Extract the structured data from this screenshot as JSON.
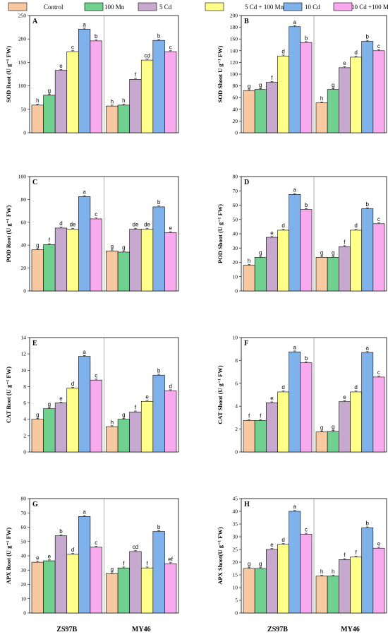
{
  "colors": {
    "series": [
      "#f8c8a0",
      "#6fd08f",
      "#c7a9cf",
      "#ffff8a",
      "#7fb2ea",
      "#f9a9ee"
    ],
    "stroke": "#000000",
    "divider": "#777777"
  },
  "legend": [
    "Control",
    "100 Mn",
    "5 Cd",
    "5 Cd + 100 Mn",
    "10 Cd",
    "10 Cd +100 Mn"
  ],
  "chart_data": [
    {
      "type": "bar",
      "panel": "A",
      "ylabel": "SOD Root (U g⁻¹ FW)",
      "categories": [
        "ZS97B",
        "MY46"
      ],
      "ylim": [
        0,
        250
      ],
      "yticks": [
        0,
        50,
        100,
        150,
        200,
        250
      ],
      "series": [
        {
          "name": "Control",
          "values": [
            59,
            57
          ],
          "letters": [
            "h",
            "h"
          ]
        },
        {
          "name": "100 Mn",
          "values": [
            80,
            59
          ],
          "letters": [
            "g",
            "h"
          ]
        },
        {
          "name": "5 Cd",
          "values": [
            133,
            114
          ],
          "letters": [
            "e",
            "f"
          ]
        },
        {
          "name": "5 Cd + 100 Mn",
          "values": [
            173,
            155
          ],
          "letters": [
            "c",
            "cd"
          ]
        },
        {
          "name": "10 Cd",
          "values": [
            221,
            197
          ],
          "letters": [
            "a",
            "b"
          ]
        },
        {
          "name": "10 Cd +100 Mn",
          "values": [
            196,
            173
          ],
          "letters": [
            "b",
            "c"
          ]
        }
      ]
    },
    {
      "type": "bar",
      "panel": "B",
      "ylabel": "SOD Shoot U g⁻¹ FW)",
      "categories": [
        "ZS97B",
        "MY46"
      ],
      "ylim": [
        0,
        200
      ],
      "yticks": [
        0,
        20,
        40,
        60,
        80,
        100,
        120,
        140,
        160,
        180,
        200
      ],
      "series": [
        {
          "name": "Control",
          "values": [
            72,
            51
          ],
          "letters": [
            "g",
            "h"
          ]
        },
        {
          "name": "100 Mn",
          "values": [
            74,
            74
          ],
          "letters": [
            "g",
            "g"
          ]
        },
        {
          "name": "5 Cd",
          "values": [
            86,
            111
          ],
          "letters": [
            "f",
            "e"
          ]
        },
        {
          "name": "5 Cd + 100 Mn",
          "values": [
            131,
            129
          ],
          "letters": [
            "d",
            "d"
          ]
        },
        {
          "name": "10 Cd",
          "values": [
            181,
            156
          ],
          "letters": [
            "a",
            "b"
          ]
        },
        {
          "name": "10 Cd +100 Mn",
          "values": [
            154,
            140
          ],
          "letters": [
            "b",
            "c"
          ]
        }
      ]
    },
    {
      "type": "bar",
      "panel": "C",
      "ylabel": "POD Root (U g⁻¹ FW)",
      "categories": [
        "ZS97B",
        "MY46"
      ],
      "ylim": [
        0,
        100
      ],
      "yticks": [
        0,
        20,
        40,
        60,
        80,
        100
      ],
      "series": [
        {
          "name": "Control",
          "values": [
            36,
            35
          ],
          "letters": [
            "g",
            "g"
          ]
        },
        {
          "name": "100 Mn",
          "values": [
            40.5,
            34
          ],
          "letters": [
            "f",
            "g"
          ]
        },
        {
          "name": "5 Cd",
          "values": [
            55,
            54
          ],
          "letters": [
            "d",
            "de"
          ]
        },
        {
          "name": "5 Cd + 100 Mn",
          "values": [
            54,
            54
          ],
          "letters": [
            "de",
            "de"
          ]
        },
        {
          "name": "10 Cd",
          "values": [
            82.5,
            73.5
          ],
          "letters": [
            "a",
            "b"
          ]
        },
        {
          "name": "10 Cd +100 Mn",
          "values": [
            63,
            51
          ],
          "letters": [
            "c",
            "e"
          ]
        }
      ]
    },
    {
      "type": "bar",
      "panel": "D",
      "ylabel": "POD Shoot (U g⁻¹ FW)",
      "categories": [
        "ZS97B",
        "MY46"
      ],
      "ylim": [
        0,
        80
      ],
      "yticks": [
        0,
        10,
        20,
        30,
        40,
        50,
        60,
        70,
        80
      ],
      "series": [
        {
          "name": "Control",
          "values": [
            18,
            23.5
          ],
          "letters": [
            "h",
            "g"
          ]
        },
        {
          "name": "100 Mn",
          "values": [
            23.5,
            23.5
          ],
          "letters": [
            "g",
            "g"
          ]
        },
        {
          "name": "5 Cd",
          "values": [
            37.5,
            31
          ],
          "letters": [
            "e",
            "f"
          ]
        },
        {
          "name": "5 Cd + 100 Mn",
          "values": [
            42.5,
            42.5
          ],
          "letters": [
            "d",
            "d"
          ]
        },
        {
          "name": "10 Cd",
          "values": [
            67.5,
            57.5
          ],
          "letters": [
            "a",
            "b"
          ]
        },
        {
          "name": "10 Cd +100 Mn",
          "values": [
            57,
            47
          ],
          "letters": [
            "b",
            "c"
          ]
        }
      ]
    },
    {
      "type": "bar",
      "panel": "E",
      "ylabel": "CAT Root (U g⁻¹ FW)",
      "categories": [
        "ZS97B",
        "MY46"
      ],
      "ylim": [
        0,
        14
      ],
      "yticks": [
        0,
        2,
        4,
        6,
        8,
        10,
        12,
        14
      ],
      "series": [
        {
          "name": "Control",
          "values": [
            4.0,
            3.1
          ],
          "letters": [
            "g",
            "h"
          ]
        },
        {
          "name": "100 Mn",
          "values": [
            5.3,
            4.0
          ],
          "letters": [
            "g",
            "g"
          ]
        },
        {
          "name": "5 Cd",
          "values": [
            6.0,
            4.9
          ],
          "letters": [
            "e",
            "f"
          ]
        },
        {
          "name": "5 Cd + 100 Mn",
          "values": [
            7.8,
            6.2
          ],
          "letters": [
            "d",
            "e"
          ]
        },
        {
          "name": "10 Cd",
          "values": [
            11.7,
            9.4
          ],
          "letters": [
            "a",
            "b"
          ]
        },
        {
          "name": "10 Cd +100 Mn",
          "values": [
            8.8,
            7.5
          ],
          "letters": [
            "c",
            "d"
          ]
        }
      ]
    },
    {
      "type": "bar",
      "panel": "F",
      "ylabel": "CAT Shoot (U g⁻¹ FW)",
      "categories": [
        "ZS97B",
        "MY46"
      ],
      "ylim": [
        0,
        10
      ],
      "yticks": [
        0,
        2,
        4,
        6,
        8,
        10
      ],
      "series": [
        {
          "name": "Control",
          "values": [
            2.75,
            1.75
          ],
          "letters": [
            "f",
            "g"
          ]
        },
        {
          "name": "100 Mn",
          "values": [
            2.75,
            1.8
          ],
          "letters": [
            "f",
            "g"
          ]
        },
        {
          "name": "5 Cd",
          "values": [
            4.3,
            4.4
          ],
          "letters": [
            "e",
            "e"
          ]
        },
        {
          "name": "5 Cd + 100 Mn",
          "values": [
            5.25,
            5.25
          ],
          "letters": [
            "d",
            "d"
          ]
        },
        {
          "name": "10 Cd",
          "values": [
            8.75,
            8.7
          ],
          "letters": [
            "a",
            "a"
          ]
        },
        {
          "name": "10 Cd +100 Mn",
          "values": [
            7.8,
            6.55
          ],
          "letters": [
            "b",
            "c"
          ]
        }
      ]
    },
    {
      "type": "bar",
      "panel": "G",
      "ylabel": "APX Root (U g⁻¹ FW)",
      "categories": [
        "ZS97B",
        "MY46"
      ],
      "ylim": [
        0,
        80
      ],
      "yticks": [
        0,
        10,
        20,
        30,
        40,
        50,
        60,
        70,
        80
      ],
      "series": [
        {
          "name": "Control",
          "values": [
            35.5,
            27.5
          ],
          "letters": [
            "e",
            "g"
          ]
        },
        {
          "name": "100 Mn",
          "values": [
            36.5,
            31.5
          ],
          "letters": [
            "e",
            "f"
          ]
        },
        {
          "name": "5 Cd",
          "values": [
            54,
            43
          ],
          "letters": [
            "b",
            "cd"
          ]
        },
        {
          "name": "5 Cd + 100 Mn",
          "values": [
            41,
            31.5
          ],
          "letters": [
            "d",
            "f"
          ]
        },
        {
          "name": "10 Cd",
          "values": [
            67.5,
            57
          ],
          "letters": [
            "a",
            "b"
          ]
        },
        {
          "name": "10 Cd +100 Mn",
          "values": [
            46,
            34.5
          ],
          "letters": [
            "c",
            "ef"
          ]
        }
      ]
    },
    {
      "type": "bar",
      "panel": "H",
      "ylabel": "APX Shoot(U g⁻¹ FW)",
      "categories": [
        "ZS97B",
        "MY46"
      ],
      "ylim": [
        0,
        45
      ],
      "yticks": [
        0,
        5,
        10,
        15,
        20,
        25,
        30,
        35,
        40,
        45
      ],
      "series": [
        {
          "name": "Control",
          "values": [
            17.5,
            14.5
          ],
          "letters": [
            "g",
            "h"
          ]
        },
        {
          "name": "100 Mn",
          "values": [
            17.5,
            14.5
          ],
          "letters": [
            "g",
            "h"
          ]
        },
        {
          "name": "5 Cd",
          "values": [
            25,
            21
          ],
          "letters": [
            "e",
            "f"
          ]
        },
        {
          "name": "5 Cd + 100 Mn",
          "values": [
            27,
            22
          ],
          "letters": [
            "d",
            "f"
          ]
        },
        {
          "name": "10 Cd",
          "values": [
            40,
            33.5
          ],
          "letters": [
            "a",
            "b"
          ]
        },
        {
          "name": "10 Cd +100 Mn",
          "values": [
            31,
            25.5
          ],
          "letters": [
            "c",
            "e"
          ]
        }
      ]
    }
  ]
}
